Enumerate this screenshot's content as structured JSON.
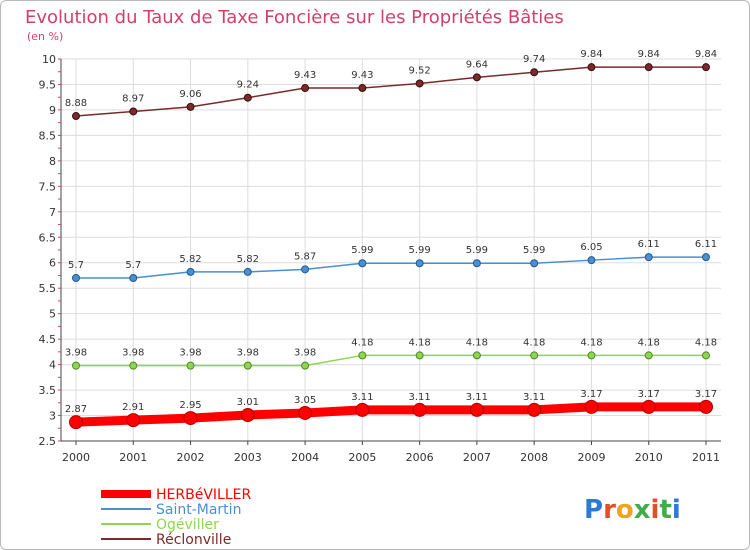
{
  "chart_data": {
    "type": "line",
    "title": "Evolution du Taux de Taxe Foncière sur les Propriétés Bâties",
    "subtitle": "(en %)",
    "x": [
      "2000",
      "2001",
      "2002",
      "2003",
      "2004",
      "2005",
      "2006",
      "2007",
      "2008",
      "2009",
      "2010",
      "2011"
    ],
    "ylim": [
      2.5,
      10
    ],
    "yticks": [
      "2.5",
      "3",
      "3.5",
      "4",
      "4.5",
      "5",
      "5.5",
      "6",
      "6.5",
      "7",
      "7.5",
      "8",
      "8.5",
      "9",
      "9.5",
      "10"
    ],
    "grid": true,
    "legend_position": "bottom-left",
    "series": [
      {
        "name": "HERBéVILLER",
        "color": "#ff0000",
        "labels": [
          "2.87",
          "2.91",
          "2.95",
          "3.01",
          "3.05",
          "3.11",
          "3.11",
          "3.11",
          "3.11",
          "3.17",
          "3.17",
          "3.17"
        ],
        "values": [
          2.87,
          2.91,
          2.95,
          3.01,
          3.05,
          3.11,
          3.11,
          3.11,
          3.11,
          3.17,
          3.17,
          3.17
        ]
      },
      {
        "name": "Saint-Martin",
        "color": "#4a8fd0",
        "labels": [
          "5.7",
          "5.7",
          "5.82",
          "5.82",
          "5.87",
          "5.99",
          "5.99",
          "5.99",
          "5.99",
          "6.05",
          "6.11",
          "6.11"
        ],
        "values": [
          5.7,
          5.7,
          5.82,
          5.82,
          5.87,
          5.99,
          5.99,
          5.99,
          5.99,
          6.05,
          6.11,
          6.11
        ]
      },
      {
        "name": "Ogéviller",
        "color": "#8fd650",
        "labels": [
          "3.98",
          "3.98",
          "3.98",
          "3.98",
          "3.98",
          "4.18",
          "4.18",
          "4.18",
          "4.18",
          "4.18",
          "4.18",
          "4.18"
        ],
        "values": [
          3.98,
          3.98,
          3.98,
          3.98,
          3.98,
          4.18,
          4.18,
          4.18,
          4.18,
          4.18,
          4.18,
          4.18
        ]
      },
      {
        "name": "Réclonville",
        "color": "#7a2a2a",
        "labels": [
          "8.88",
          "8.97",
          "9.06",
          "9.24",
          "9.43",
          "9.43",
          "9.52",
          "9.64",
          "9.74",
          "9.84",
          "9.84",
          "9.84"
        ],
        "values": [
          8.88,
          8.97,
          9.06,
          9.24,
          9.43,
          9.43,
          9.52,
          9.64,
          9.74,
          9.84,
          9.84,
          9.84
        ]
      }
    ]
  },
  "brand": {
    "logo_text": "Proxiti"
  },
  "colors": {
    "title": "#d2406a",
    "grid": "#dddddd",
    "axis_tick": "#d2406a"
  }
}
